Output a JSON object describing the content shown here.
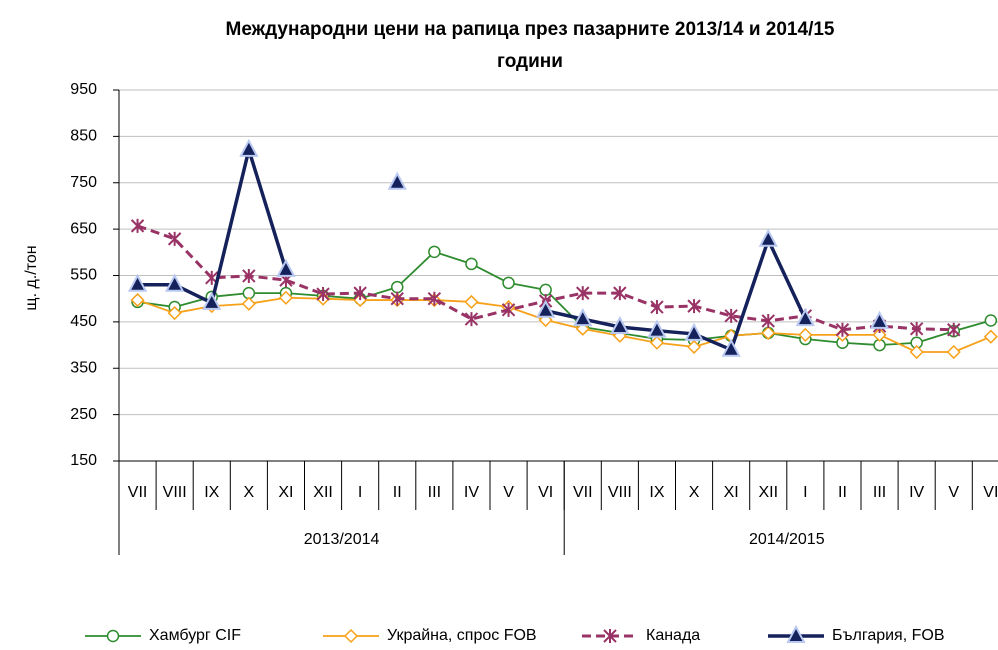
{
  "chart_data": {
    "type": "line",
    "title": [
      "Международни цени на рапица през пазарните 2013/14  и  2014/15",
      "години"
    ],
    "y_label": "щ. д./тон",
    "categories": [
      "VII",
      "VIII",
      "IX",
      "X",
      "XI",
      "XII",
      "I",
      "II",
      "III",
      "IV",
      "V",
      "VI",
      "VII",
      "VIII",
      "IX",
      "X",
      "XI",
      "XII",
      "I",
      "II",
      "III",
      "IV",
      "V",
      "VI"
    ],
    "groups": [
      "2013/2014",
      "2014/2015"
    ],
    "ylim": [
      150,
      950
    ],
    "yticks": [
      150,
      250,
      350,
      450,
      550,
      650,
      750,
      850,
      950
    ],
    "grid": true,
    "legend": "bottom",
    "series": [
      {
        "name": "Хамбург CIF",
        "color": "#2e8b2e",
        "marker": "circle",
        "dash": false,
        "values": [
          493,
          482,
          504,
          512,
          512,
          506,
          500,
          525,
          601,
          575,
          534,
          519,
          439,
          426,
          413,
          411,
          420,
          426,
          413,
          405,
          400,
          405,
          430,
          453
        ]
      },
      {
        "name": "Украйна, спрос FOB",
        "color": "#f7a11a",
        "marker": "diamond",
        "dash": false,
        "values": [
          497,
          469,
          484,
          489,
          502,
          500,
          497,
          497,
          497,
          493,
          482,
          454,
          435,
          420,
          405,
          396,
          420,
          426,
          422,
          422,
          422,
          385,
          385,
          418
        ]
      },
      {
        "name": "Канада",
        "color": "#993366",
        "marker": "asterisk",
        "dash": true,
        "values": [
          657,
          629,
          545,
          549,
          540,
          510,
          512,
          500,
          500,
          456,
          476,
          495,
          512,
          512,
          482,
          484,
          463,
          452,
          463,
          433,
          441,
          435,
          433,
          null
        ]
      },
      {
        "name": "България, FOB",
        "color": "#14215a",
        "marker": "triangle",
        "dash": false,
        "values": [
          530,
          530,
          491,
          821,
          562,
          null,
          null,
          750,
          null,
          null,
          null,
          474,
          456,
          439,
          431,
          424,
          390,
          627,
          456,
          null,
          450,
          null,
          null,
          null
        ]
      }
    ]
  }
}
